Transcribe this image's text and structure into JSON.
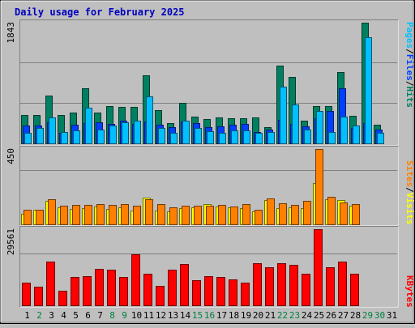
{
  "title": "Daily usage for February 2025",
  "colors": {
    "background": "#bfbfbf",
    "title": "#0000c0",
    "grid": "#808080",
    "hits": "#008060",
    "files": "#0040ff",
    "pages": "#00c0ff",
    "visits": "#ffff00",
    "sites": "#ff8000",
    "kbytes": "#ff0000",
    "weekday_label": "#000000",
    "weekend_label": "#008040"
  },
  "chart_data": [
    {
      "type": "bar",
      "panel": "hits-files-pages",
      "ymax_label": "1843",
      "ylim": [
        0,
        1843
      ],
      "legend": [
        "Pages",
        "/",
        "Files",
        "/",
        "Hits"
      ],
      "series": [
        {
          "name": "Hits",
          "values": [
            438,
            438,
            732,
            438,
            466,
            843,
            465,
            565,
            554,
            561,
            1041,
            502,
            308,
            615,
            402,
            374,
            399,
            378,
            379,
            391,
            250,
            1190,
            1009,
            349,
            574,
            569,
            1093,
            418,
            1843,
            283,
            0
          ]
        },
        {
          "name": "Files",
          "values": [
            266,
            266,
            316,
            155,
            289,
            310,
            323,
            300,
            347,
            297,
            337,
            282,
            251,
            337,
            304,
            243,
            265,
            282,
            298,
            171,
            213,
            356,
            299,
            260,
            382,
            499,
            839,
            238,
            313,
            211,
            0
          ]
        },
        {
          "name": "Pages",
          "values": [
            160,
            232,
            400,
            167,
            200,
            544,
            211,
            270,
            316,
            349,
            716,
            235,
            158,
            342,
            235,
            185,
            166,
            203,
            194,
            158,
            173,
            860,
            590,
            211,
            499,
            169,
            405,
            273,
            1626,
            166,
            0
          ]
        }
      ]
    },
    {
      "type": "bar",
      "panel": "visits-sites",
      "ymax_label": "450",
      "ylim": [
        0,
        450
      ],
      "legend": [
        "Sites",
        "/",
        "Visits"
      ],
      "series": [
        {
          "name": "Visits",
          "values": [
            64,
            86,
            140,
            104,
            94,
            99,
            105,
            90,
            104,
            82,
            158,
            84,
            77,
            98,
            100,
            121,
            105,
            102,
            96,
            76,
            143,
            98,
            102,
            95,
            245,
            150,
            144,
            111,
            0,
            0,
            0
          ]
        },
        {
          "name": "Sites",
          "values": [
            85,
            89,
            152,
            112,
            114,
            116,
            123,
            114,
            123,
            112,
            148,
            120,
            104,
            113,
            112,
            112,
            115,
            106,
            120,
            89,
            155,
            124,
            116,
            142,
            450,
            163,
            130,
            122,
            0,
            0,
            0
          ]
        }
      ]
    },
    {
      "type": "bar",
      "panel": "kbytes",
      "ymax_label": "29561",
      "ylim": [
        0,
        29561
      ],
      "legend": [
        "KBytes"
      ],
      "series": [
        {
          "name": "KBytes",
          "values": [
            8800,
            7300,
            17000,
            5750,
            10900,
            11300,
            14100,
            13800,
            10900,
            19800,
            12400,
            7500,
            13900,
            16000,
            9600,
            11200,
            10900,
            10000,
            8900,
            16400,
            14900,
            16400,
            15700,
            12300,
            29561,
            14800,
            16900,
            12300,
            0,
            0,
            0
          ]
        }
      ]
    }
  ],
  "x_labels": [
    "1",
    "2",
    "3",
    "4",
    "5",
    "6",
    "7",
    "8",
    "9",
    "10",
    "11",
    "12",
    "13",
    "14",
    "15",
    "16",
    "17",
    "18",
    "19",
    "20",
    "21",
    "22",
    "23",
    "24",
    "25",
    "26",
    "27",
    "28",
    "29",
    "30",
    "31"
  ],
  "x_label_weekend": [
    false,
    true,
    false,
    false,
    false,
    false,
    false,
    true,
    true,
    false,
    false,
    false,
    false,
    false,
    true,
    true,
    false,
    false,
    false,
    false,
    false,
    true,
    true,
    false,
    false,
    false,
    false,
    false,
    true,
    true,
    false
  ]
}
